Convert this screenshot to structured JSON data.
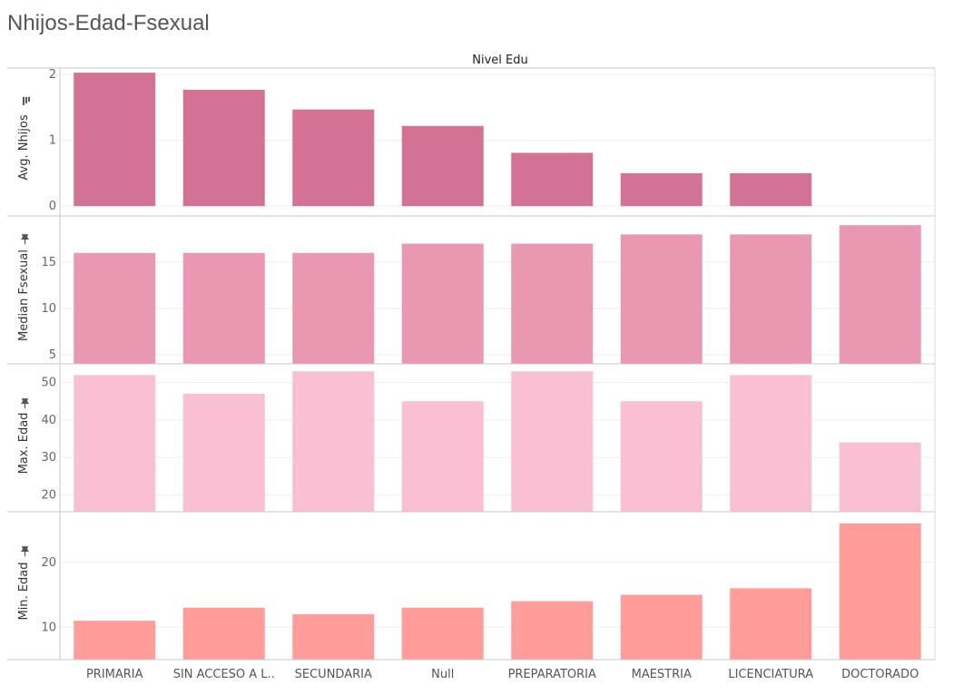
{
  "title": "Nhijos-Edad-Fsexual",
  "chart_data": {
    "type": "bar",
    "header": "Nivel Edu",
    "categories": [
      "PRIMARIA",
      "SIN ACCESO A L..",
      "SECUNDARIA",
      "Null",
      "PREPARATORIA",
      "MAESTRIA",
      "LICENCIATURA",
      "DOCTORADO"
    ],
    "series": [
      {
        "name": "Avg. Nhijos",
        "values": [
          2.03,
          1.77,
          1.47,
          1.22,
          0.81,
          0.5,
          0.5,
          0
        ],
        "color": "#d37295",
        "ticks": [
          0,
          1,
          2
        ],
        "ylim": [
          -0.15,
          2.1
        ],
        "icon": "sort-icon"
      },
      {
        "name": "Median Fsexual",
        "values": [
          16,
          16,
          16,
          17,
          17,
          18,
          18,
          19
        ],
        "color": "#e898b1",
        "ticks": [
          5,
          10,
          15
        ],
        "ylim": [
          4,
          20
        ],
        "icon": "pin-icon"
      },
      {
        "name": "Max. Edad",
        "values": [
          52,
          47,
          53,
          45,
          53,
          45,
          52,
          34
        ],
        "color": "#f9bfd3",
        "ticks": [
          20,
          30,
          40,
          50
        ],
        "ylim": [
          15.5,
          55
        ],
        "icon": "pin-icon"
      },
      {
        "name": "Min. Edad",
        "values": [
          11,
          13,
          12,
          13,
          14,
          15,
          16,
          26
        ],
        "color": "#ff9d9a",
        "ticks": [
          10,
          20
        ],
        "ylim": [
          5,
          27.8
        ],
        "icon": "pin-icon"
      }
    ]
  }
}
